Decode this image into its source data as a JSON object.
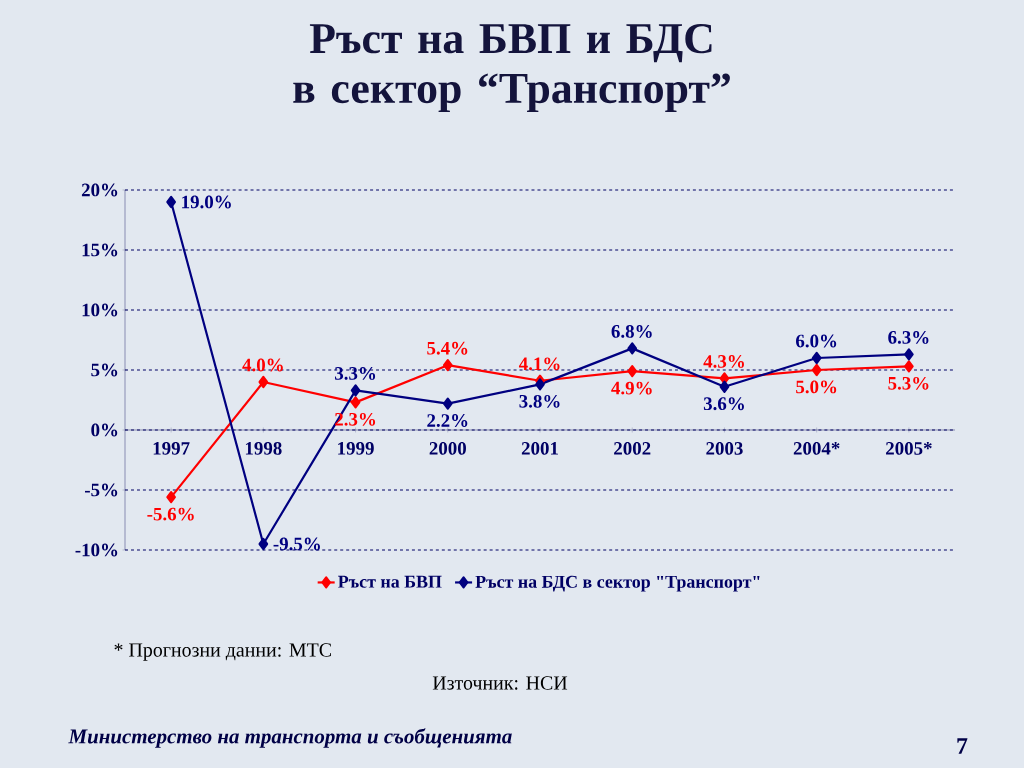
{
  "chart_data": {
    "type": "line",
    "title": "Ръст на БВП и БДС в сектор “Транспорт”",
    "categories": [
      "1997",
      "1998",
      "1999",
      "2000",
      "2001",
      "2002",
      "2003",
      "2004*",
      "2005*"
    ],
    "series": [
      {
        "name": "Ръст на БВП",
        "color": "#ff0000",
        "values": [
          -5.6,
          4.0,
          2.3,
          5.4,
          4.1,
          4.9,
          4.3,
          5.0,
          5.3
        ],
        "value_labels": [
          "-5.6%",
          "4.0%",
          "2.3%",
          "5.4%",
          "4.1%",
          "4.9%",
          "4.3%",
          "5.0%",
          "5.3%"
        ]
      },
      {
        "name": "Ръст на БДС в сектор \"Транспорт\"",
        "color": "#000080",
        "values": [
          19.0,
          -9.5,
          3.3,
          2.2,
          3.8,
          6.8,
          3.6,
          6.0,
          6.3
        ],
        "value_labels": [
          "19.0%",
          "-9.5%",
          "3.3%",
          "2.2%",
          "3.8%",
          "6.8%",
          "3.6%",
          "6.0%",
          "6.3%"
        ]
      }
    ],
    "ylim": [
      -10,
      20
    ],
    "yticks": [
      {
        "value": -10,
        "label": "-10%"
      },
      {
        "value": -5,
        "label": "-5%"
      },
      {
        "value": 0,
        "label": "0%"
      },
      {
        "value": 5,
        "label": "5%"
      },
      {
        "value": 10,
        "label": "10%"
      },
      {
        "value": 15,
        "label": "15%"
      },
      {
        "value": 20,
        "label": "20%"
      }
    ],
    "grid": "y",
    "legend": "bottom",
    "marker": "diamond",
    "line_style": "solid",
    "annotations": [
      "* Прогнозни данни: МТС",
      "Източник: НСИ",
      "Министерство на транспорта и съобщенията",
      "7"
    ]
  }
}
